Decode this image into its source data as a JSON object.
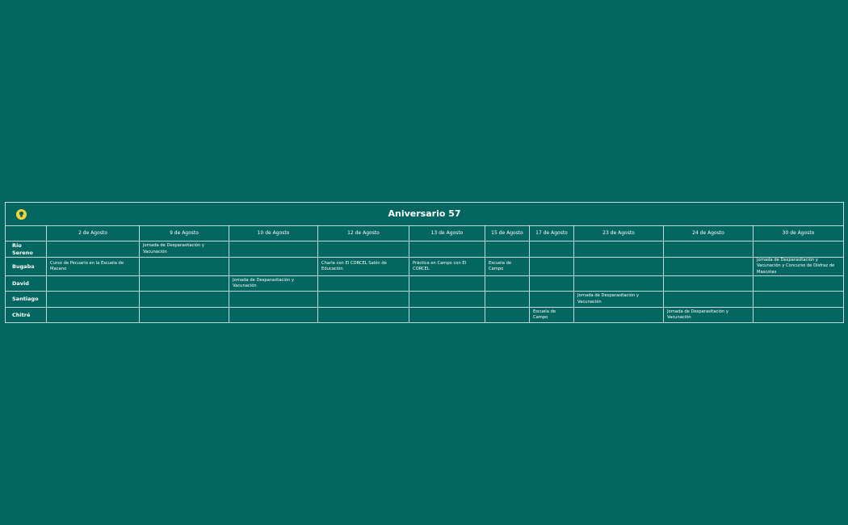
{
  "table": {
    "title": "Aniversario 57",
    "headers": [
      "2 de Agosto",
      "9 de Agosto",
      "10 de Agosto",
      "12 de Agosto",
      "13 de Agosto",
      "15 de Agosto",
      "17 de Agosto",
      "23 de Agosto",
      "24 de Agosto",
      "30 de Agosto"
    ],
    "rows": [
      {
        "label": "Río Sereno",
        "cells": [
          null,
          "Jornada de Desparasitación y Vacunación",
          null,
          null,
          null,
          null,
          null,
          null,
          null,
          null
        ]
      },
      {
        "label": "Bugaba",
        "cells": [
          "Curso de Pecuario en la Escuela de Macano",
          null,
          null,
          "Charla con El CORCEL Salón de Educación",
          "Práctica en Campo con El CORCEL",
          "Escuela de Campo",
          null,
          null,
          null,
          "Jornada de Desparasitación y Vacunación y Concurso de Disfraz de Mascotas"
        ]
      },
      {
        "label": "David",
        "cells": [
          null,
          null,
          "Jornada de Desparasitación y Vacunación",
          null,
          null,
          null,
          null,
          null,
          null,
          null
        ]
      },
      {
        "label": "Santiago",
        "cells": [
          null,
          null,
          null,
          null,
          null,
          null,
          null,
          "Jornada de Desparasitación y Vacunación",
          null,
          null
        ]
      },
      {
        "label": "Chitré",
        "cells": [
          null,
          null,
          null,
          null,
          null,
          null,
          "Escuela de Campo",
          null,
          "Jornada de Desparasitación y Vacunación",
          null
        ]
      }
    ]
  }
}
